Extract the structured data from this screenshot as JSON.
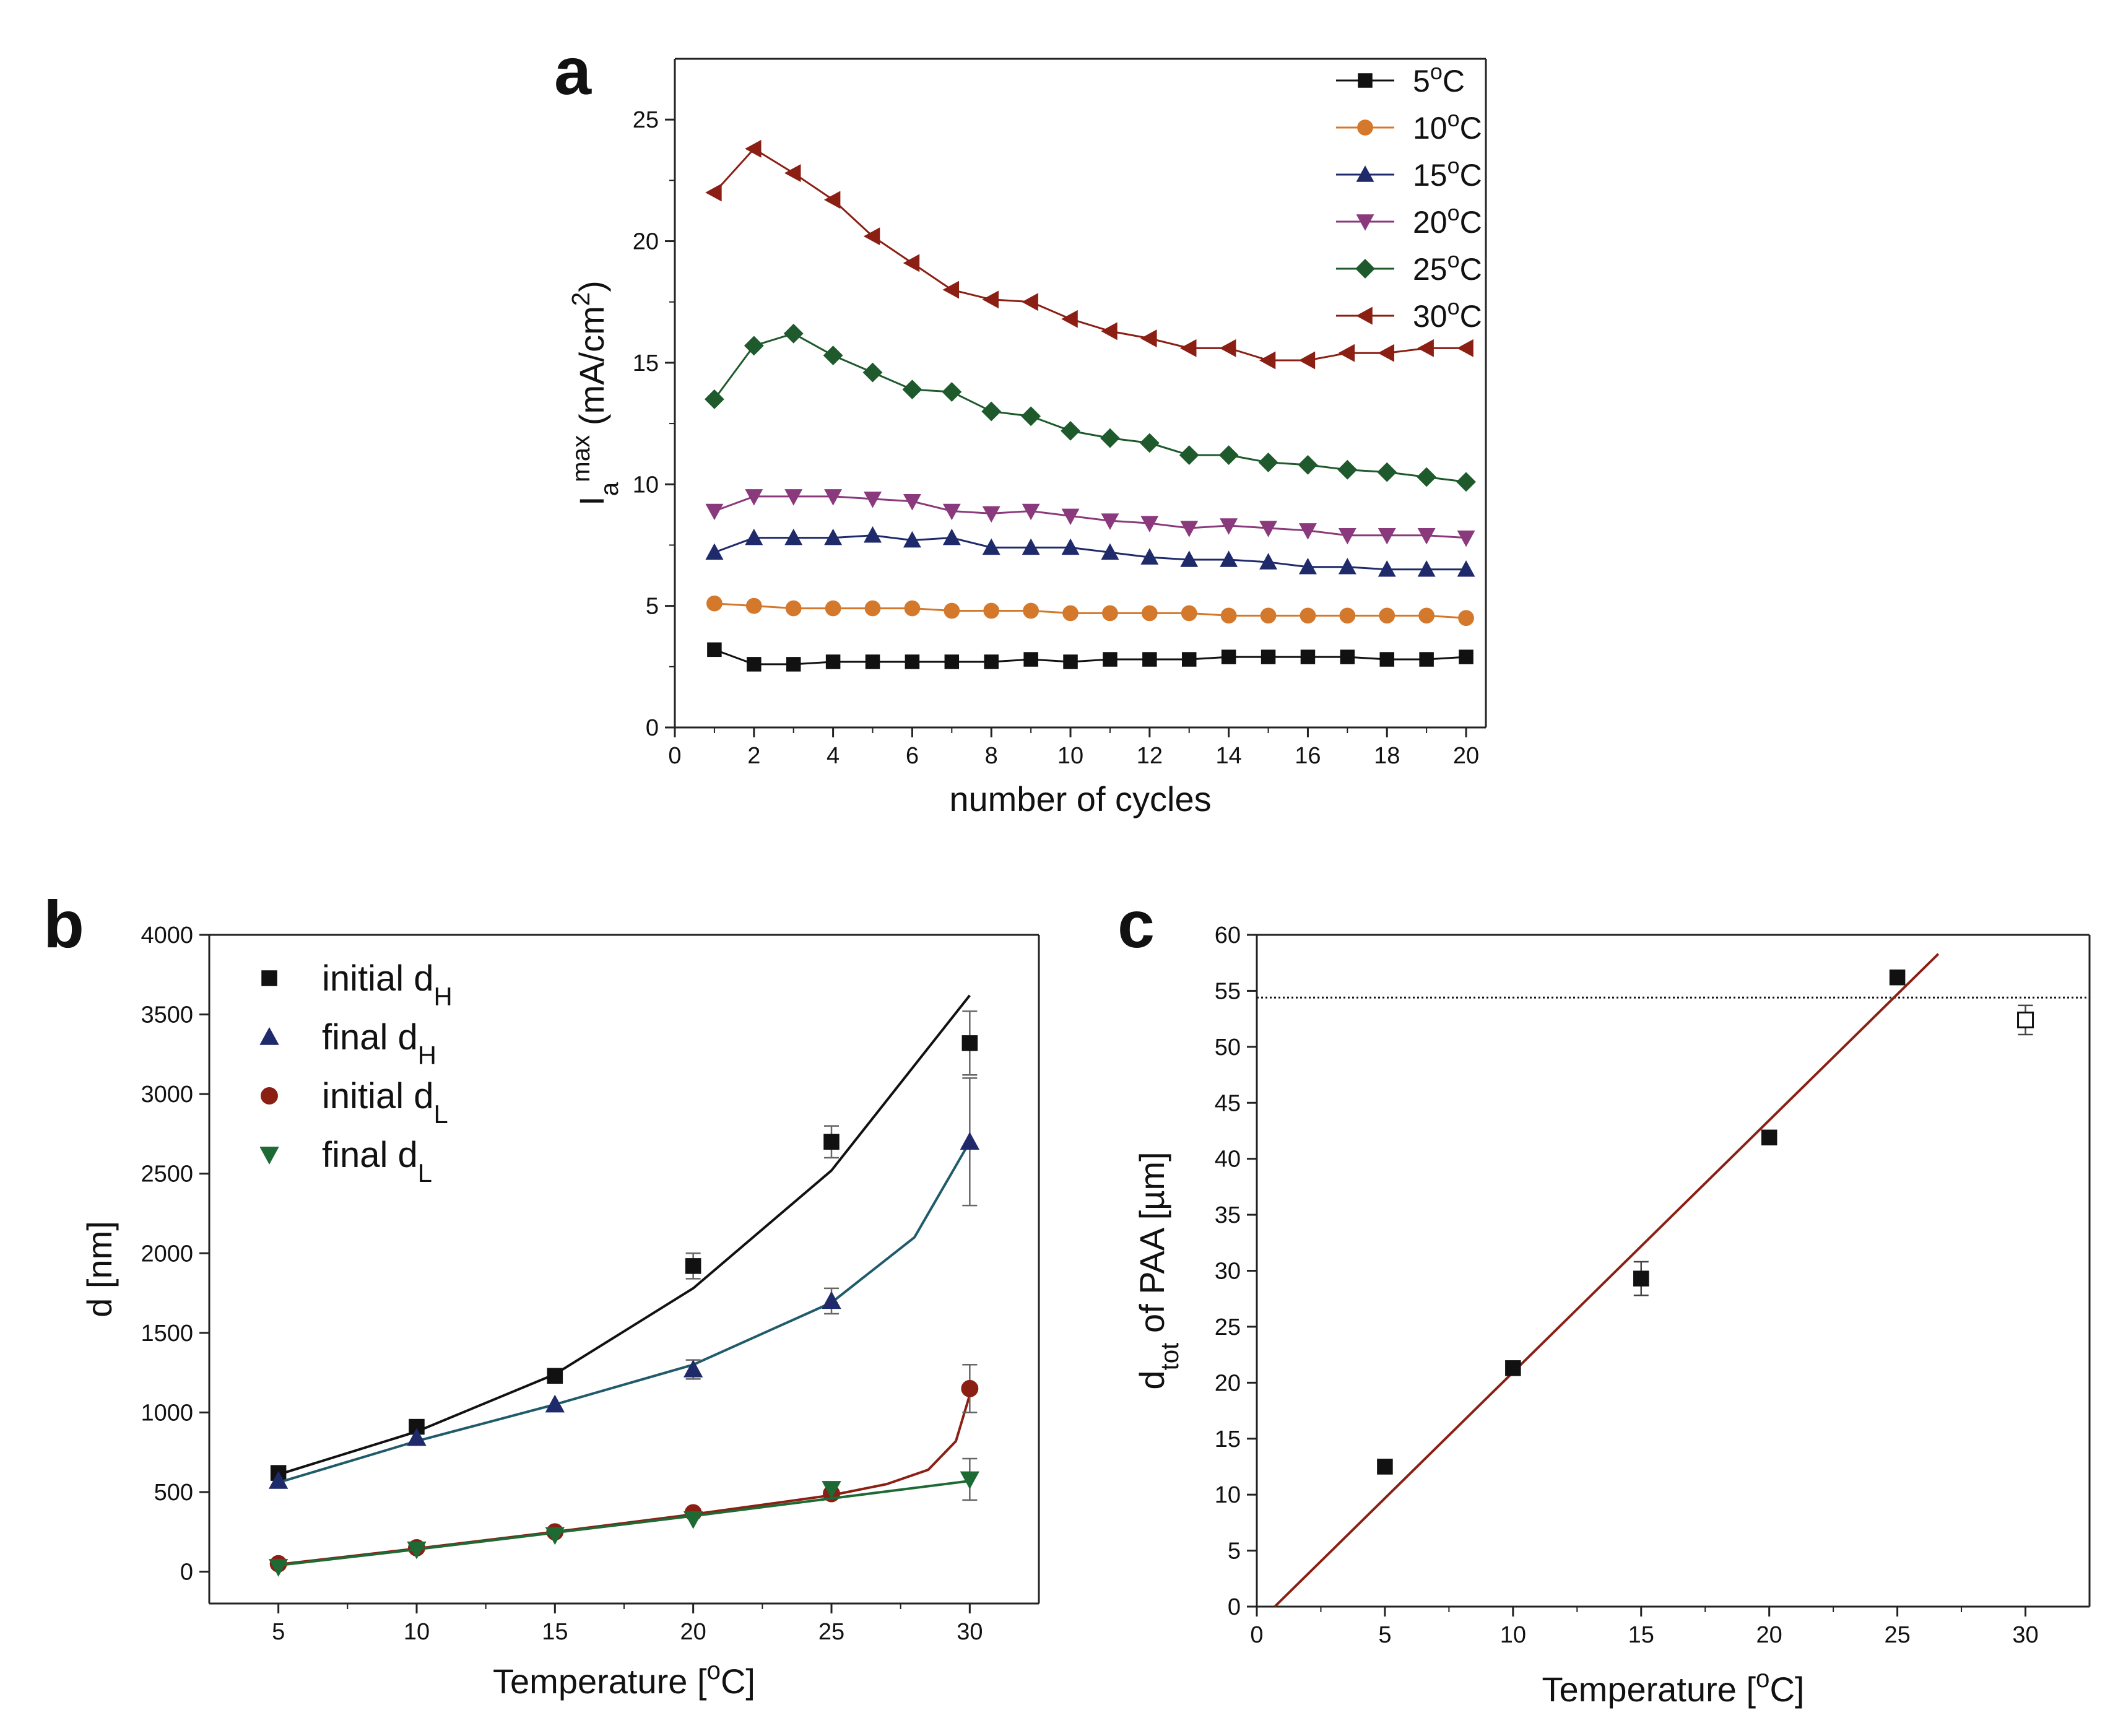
{
  "panels": {
    "a": {
      "tag": "a"
    },
    "b": {
      "tag": "b"
    },
    "c": {
      "tag": "c"
    }
  },
  "chart_data": [
    {
      "id": "a",
      "type": "line",
      "xlabel": "number of cycles",
      "ylabel": "I_a^max (mA/cm²)",
      "ylabel_parts": {
        "main": "I",
        "sub": "a",
        "sup": "max",
        "rest": " (mA/cm",
        "rest_sup": "2",
        "close": ")"
      },
      "xlim": [
        0,
        20.5
      ],
      "ylim": [
        0,
        27.5
      ],
      "xticks": [
        0,
        2,
        4,
        6,
        8,
        10,
        12,
        14,
        16,
        18,
        20
      ],
      "yticks": [
        0,
        5,
        10,
        15,
        20,
        25
      ],
      "x": [
        1,
        2,
        3,
        4,
        5,
        6,
        7,
        8,
        9,
        10,
        11,
        12,
        13,
        14,
        15,
        16,
        17,
        18,
        19,
        20
      ],
      "legend_position": "top-right",
      "series": [
        {
          "name": "5",
          "label_unit": "°C",
          "marker": "square",
          "color": "#111111",
          "values": [
            3.2,
            2.6,
            2.6,
            2.7,
            2.7,
            2.7,
            2.7,
            2.7,
            2.8,
            2.7,
            2.8,
            2.8,
            2.8,
            2.9,
            2.9,
            2.9,
            2.9,
            2.8,
            2.8,
            2.9
          ]
        },
        {
          "name": "10",
          "label_unit": "°C",
          "marker": "circle",
          "color": "#d4782c",
          "values": [
            5.1,
            5.0,
            4.9,
            4.9,
            4.9,
            4.9,
            4.8,
            4.8,
            4.8,
            4.7,
            4.7,
            4.7,
            4.7,
            4.6,
            4.6,
            4.6,
            4.6,
            4.6,
            4.6,
            4.5
          ]
        },
        {
          "name": "15",
          "label_unit": "°C",
          "marker": "triangle-up",
          "color": "#1f2a6b",
          "values": [
            7.2,
            7.8,
            7.8,
            7.8,
            7.9,
            7.7,
            7.8,
            7.4,
            7.4,
            7.4,
            7.2,
            7.0,
            6.9,
            6.9,
            6.8,
            6.6,
            6.6,
            6.5,
            6.5,
            6.5
          ]
        },
        {
          "name": "20",
          "label_unit": "°C",
          "marker": "triangle-down",
          "color": "#8a3a7c",
          "values": [
            8.9,
            9.5,
            9.5,
            9.5,
            9.4,
            9.3,
            8.9,
            8.8,
            8.9,
            8.7,
            8.5,
            8.4,
            8.2,
            8.3,
            8.2,
            8.1,
            7.9,
            7.9,
            7.9,
            7.8
          ]
        },
        {
          "name": "25",
          "label_unit": "°C",
          "marker": "diamond",
          "color": "#1e5a2c",
          "values": [
            13.5,
            15.7,
            16.2,
            15.3,
            14.6,
            13.9,
            13.8,
            13.0,
            12.8,
            12.2,
            11.9,
            11.7,
            11.2,
            11.2,
            10.9,
            10.8,
            10.6,
            10.5,
            10.3,
            10.1
          ]
        },
        {
          "name": "30",
          "label_unit": "°C",
          "marker": "triangle-left",
          "color": "#8b1f14",
          "values": [
            22.0,
            23.8,
            22.8,
            21.7,
            20.2,
            19.1,
            18.0,
            17.6,
            17.5,
            16.8,
            16.3,
            16.0,
            15.6,
            15.6,
            15.1,
            15.1,
            15.4,
            15.4,
            15.6,
            15.6
          ]
        }
      ]
    },
    {
      "id": "b",
      "type": "scatter",
      "xlabel": "Temperature [°C]",
      "xlabel_parts": {
        "main": "Temperature [",
        "sup": "o",
        "rest": "C]"
      },
      "ylabel": "d [nm]",
      "xlim": [
        2.5,
        32.5
      ],
      "ylim": [
        -200,
        4000
      ],
      "xticks": [
        5,
        10,
        15,
        20,
        25,
        30
      ],
      "yticks": [
        0,
        500,
        1000,
        1500,
        2000,
        2500,
        3000,
        3500,
        4000
      ],
      "x": [
        5,
        10,
        15,
        20,
        25,
        30
      ],
      "legend_position": "top-left",
      "series": [
        {
          "name": "initial d",
          "sub": "H",
          "marker": "square",
          "color": "#111111",
          "values": [
            620,
            910,
            1230,
            1920,
            2700,
            3320
          ],
          "errors": [
            0,
            0,
            0,
            80,
            100,
            200
          ],
          "fit": [
            [
              5,
              610
            ],
            [
              10,
              880
            ],
            [
              15,
              1240
            ],
            [
              20,
              1780
            ],
            [
              25,
              2520
            ],
            [
              30,
              3620
            ]
          ],
          "fit_color": "#111111"
        },
        {
          "name": "final d",
          "sub": "H",
          "marker": "triangle-up",
          "color": "#1f2a6b",
          "values": [
            570,
            840,
            1050,
            1270,
            1700,
            2700
          ],
          "errors": [
            0,
            0,
            0,
            60,
            80,
            400
          ],
          "fit": [
            [
              5,
              560
            ],
            [
              10,
              820
            ],
            [
              15,
              1050
            ],
            [
              20,
              1300
            ],
            [
              25,
              1690
            ],
            [
              28,
              2100
            ],
            [
              30,
              2700
            ]
          ],
          "fit_color": "#1f5b6a"
        },
        {
          "name": "initial d",
          "sub": "L",
          "marker": "circle",
          "color": "#8b1f14",
          "values": [
            50,
            150,
            250,
            370,
            490,
            1150
          ],
          "errors": [
            0,
            0,
            0,
            0,
            0,
            150
          ],
          "fit": [
            [
              5,
              45
            ],
            [
              10,
              145
            ],
            [
              15,
              250
            ],
            [
              20,
              360
            ],
            [
              25,
              480
            ],
            [
              27,
              550
            ],
            [
              28.5,
              640
            ],
            [
              29.5,
              820
            ],
            [
              30,
              1110
            ]
          ],
          "fit_color": "#8b1f14"
        },
        {
          "name": "final d",
          "sub": "L",
          "marker": "triangle-down",
          "color": "#1e6a34",
          "values": [
            30,
            140,
            230,
            330,
            520,
            580
          ],
          "errors": [
            0,
            0,
            0,
            0,
            0,
            130
          ],
          "fit": [
            [
              5,
              40
            ],
            [
              10,
              140
            ],
            [
              15,
              245
            ],
            [
              20,
              350
            ],
            [
              25,
              460
            ],
            [
              30,
              570
            ]
          ],
          "fit_color": "#1e6a34"
        }
      ]
    },
    {
      "id": "c",
      "type": "scatter",
      "xlabel": "Temperature [°C]",
      "xlabel_parts": {
        "main": "Temperature [",
        "sup": "o",
        "rest": "C]"
      },
      "ylabel": "d_tot of PAA [µm]",
      "ylabel_parts": {
        "main": "d",
        "sub": "tot",
        "rest": " of PAA [µm]"
      },
      "xlim": [
        0,
        32.5
      ],
      "ylim": [
        0,
        60
      ],
      "xticks": [
        0,
        5,
        10,
        15,
        20,
        25,
        30
      ],
      "yticks": [
        0,
        5,
        10,
        15,
        20,
        25,
        30,
        35,
        40,
        45,
        50,
        55,
        60
      ],
      "points": [
        {
          "x": 5,
          "y": 12.5,
          "err": 0,
          "filled": true
        },
        {
          "x": 10,
          "y": 21.3,
          "err": 0,
          "filled": true
        },
        {
          "x": 15,
          "y": 29.3,
          "err": 1.5,
          "filled": true
        },
        {
          "x": 20,
          "y": 41.9,
          "err": 0,
          "filled": true
        },
        {
          "x": 25,
          "y": 56.2,
          "err": 0,
          "filled": true
        },
        {
          "x": 30,
          "y": 52.4,
          "err": 1.3,
          "filled": false
        }
      ],
      "fit_line": {
        "x1": 0.7,
        "y1": 0,
        "x2": 26.6,
        "y2": 58.3,
        "color": "#8b1f14"
      },
      "hline": {
        "y": 54.4,
        "style": "dotted"
      }
    }
  ]
}
